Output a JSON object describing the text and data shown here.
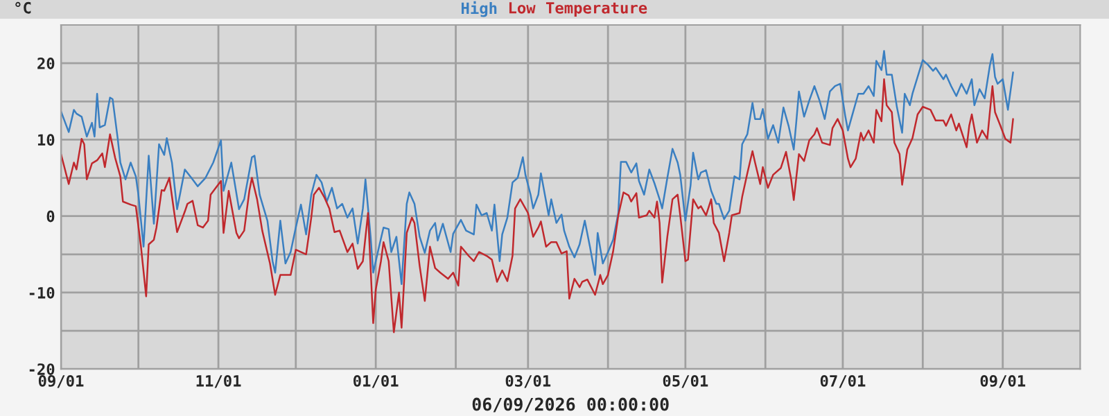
{
  "chart_data": {
    "type": "line",
    "title": "Temperature",
    "ylabel": "°C",
    "xlabel": "06/09/2026 00:00:00",
    "legend": "top",
    "grid": true,
    "marker": "none",
    "line_style": "solid",
    "xlim": [
      "2025-09-01",
      "2026-10-01"
    ],
    "xticks": [
      {
        "value": "2025-09-01",
        "label": "09/01"
      },
      {
        "value": "2025-10-01",
        "label": null
      },
      {
        "value": "2025-11-01",
        "label": "11/01"
      },
      {
        "value": "2025-12-01",
        "label": null
      },
      {
        "value": "2026-01-01",
        "label": "01/01"
      },
      {
        "value": "2026-02-01",
        "label": null
      },
      {
        "value": "2026-03-01",
        "label": "03/01"
      },
      {
        "value": "2026-04-01",
        "label": null
      },
      {
        "value": "2026-05-01",
        "label": "05/01"
      },
      {
        "value": "2026-06-01",
        "label": null
      },
      {
        "value": "2026-07-01",
        "label": "07/01"
      },
      {
        "value": "2026-08-01",
        "label": null
      },
      {
        "value": "2026-09-01",
        "label": "09/01"
      }
    ],
    "ylim": [
      -20,
      25
    ],
    "yticks": [
      -20,
      {
        "value": -15,
        "label": null
      },
      -10,
      {
        "value": -5,
        "label": null
      },
      0,
      {
        "value": 5,
        "label": null
      },
      10,
      {
        "value": 15,
        "label": null
      },
      20
    ],
    "series": [
      {
        "name": "High",
        "color": "#3a7fc1",
        "x": [
          "2025-09-01",
          "2025-09-04",
          "2025-09-06",
          "2025-09-07",
          "2025-09-09",
          "2025-09-11",
          "2025-09-13",
          "2025-09-14",
          "2025-09-15",
          "2025-09-16",
          "2025-09-18",
          "2025-09-20",
          "2025-09-21",
          "2025-09-23",
          "2025-09-24",
          "2025-09-26",
          "2025-09-28",
          "2025-09-30",
          "2025-10-01",
          "2025-10-03",
          "2025-10-05",
          "2025-10-07",
          "2025-10-09",
          "2025-10-11",
          "2025-10-12",
          "2025-10-14",
          "2025-10-16",
          "2025-10-19",
          "2025-10-22",
          "2025-10-24",
          "2025-10-27",
          "2025-10-30",
          "2025-11-02",
          "2025-11-03",
          "2025-11-06",
          "2025-11-09",
          "2025-11-11",
          "2025-11-14",
          "2025-11-15",
          "2025-11-17",
          "2025-11-20",
          "2025-11-22",
          "2025-11-23",
          "2025-11-25",
          "2025-11-27",
          "2025-11-29",
          "2025-12-01",
          "2025-12-03",
          "2025-12-05",
          "2025-12-07",
          "2025-12-09",
          "2025-12-11",
          "2025-12-13",
          "2025-12-15",
          "2025-12-17",
          "2025-12-19",
          "2025-12-21",
          "2025-12-23",
          "2025-12-25",
          "2025-12-27",
          "2025-12-28",
          "2025-12-30",
          "2025-12-31",
          "2026-01-02",
          "2026-01-04",
          "2026-01-06",
          "2026-01-07",
          "2026-01-09",
          "2026-01-11",
          "2026-01-13",
          "2026-01-14",
          "2026-01-16",
          "2026-01-18",
          "2026-01-20",
          "2026-01-22",
          "2026-01-24",
          "2026-01-25",
          "2026-01-27",
          "2026-01-30",
          "2026-01-31",
          "2026-02-03",
          "2026-02-05",
          "2026-02-08",
          "2026-02-09",
          "2026-02-11",
          "2026-02-13",
          "2026-02-15",
          "2026-02-16",
          "2026-02-18",
          "2026-02-19",
          "2026-02-21",
          "2026-02-23",
          "2026-02-25",
          "2026-02-27",
          "2026-02-28",
          "2026-03-02",
          "2026-03-03",
          "2026-03-05",
          "2026-03-06",
          "2026-03-09",
          "2026-03-10",
          "2026-03-12",
          "2026-03-14",
          "2026-03-15",
          "2026-03-17",
          "2026-03-19",
          "2026-03-21",
          "2026-03-23",
          "2026-03-25",
          "2026-03-27",
          "2026-03-28",
          "2026-03-30",
          "2026-04-01",
          "2026-04-03",
          "2026-04-05",
          "2026-04-06",
          "2026-04-08",
          "2026-04-10",
          "2026-04-12",
          "2026-04-13",
          "2026-04-15",
          "2026-04-17",
          "2026-04-19",
          "2026-04-21",
          "2026-04-22",
          "2026-04-24",
          "2026-04-26",
          "2026-04-28",
          "2026-04-29",
          "2026-05-01",
          "2026-05-03",
          "2026-05-04",
          "2026-05-06",
          "2026-05-07",
          "2026-05-09",
          "2026-05-11",
          "2026-05-13",
          "2026-05-14",
          "2026-05-16",
          "2026-05-18",
          "2026-05-20",
          "2026-05-22",
          "2026-05-23",
          "2026-05-25",
          "2026-05-27",
          "2026-05-28",
          "2026-05-30",
          "2026-05-31",
          "2026-06-02",
          "2026-06-04",
          "2026-06-06",
          "2026-06-08",
          "2026-06-10",
          "2026-06-12",
          "2026-06-13",
          "2026-06-14",
          "2026-06-16",
          "2026-06-18",
          "2026-06-20",
          "2026-06-22",
          "2026-06-24",
          "2026-06-26",
          "2026-06-28",
          "2026-06-30",
          "2026-07-02",
          "2026-07-03",
          "2026-07-05",
          "2026-07-07",
          "2026-07-09",
          "2026-07-11",
          "2026-07-13",
          "2026-07-14",
          "2026-07-16",
          "2026-07-17",
          "2026-07-18",
          "2026-07-20",
          "2026-07-22",
          "2026-07-24",
          "2026-07-25",
          "2026-07-27",
          "2026-07-28",
          "2026-07-30",
          "2026-08-01",
          "2026-08-03",
          "2026-08-05",
          "2026-08-06",
          "2026-08-09",
          "2026-08-10",
          "2026-08-12",
          "2026-08-14",
          "2026-08-16",
          "2026-08-18",
          "2026-08-20",
          "2026-08-21",
          "2026-08-23",
          "2026-08-25",
          "2026-08-27",
          "2026-08-28",
          "2026-08-29",
          "2026-08-30",
          "2026-09-01",
          "2026-09-03",
          "2026-09-05"
        ],
        "values": [
          13.7,
          11,
          13.9,
          13.4,
          13,
          10.4,
          12.2,
          10.4,
          16,
          11.6,
          11.9,
          15.5,
          15.3,
          10.1,
          7,
          4.8,
          7,
          5.2,
          2.8,
          -4,
          7.9,
          -1,
          9.4,
          8,
          10.2,
          7,
          0.9,
          6.1,
          4.8,
          3.9,
          5,
          7,
          9.9,
          3.3,
          7,
          0.9,
          2.2,
          7.7,
          7.9,
          2.8,
          -0.6,
          -5.9,
          -7.4,
          -0.6,
          -6.2,
          -4.7,
          -1.5,
          1.5,
          -2.4,
          2.8,
          5.4,
          4.4,
          1.9,
          3.7,
          1,
          1.6,
          -0.2,
          1,
          -3.6,
          1,
          4.8,
          -2.7,
          -7.4,
          -4.4,
          -1.5,
          -1.7,
          -4.7,
          -2.7,
          -8.9,
          1.6,
          3.1,
          1.6,
          -2.7,
          -4.8,
          -1.9,
          -0.9,
          -3.2,
          -1,
          -4.7,
          -2.3,
          -0.5,
          -1.9,
          -2.4,
          1.5,
          0.1,
          0.4,
          -1.9,
          1.5,
          -5.9,
          -2.4,
          -0.2,
          4.4,
          5,
          7.7,
          5.4,
          2.8,
          1,
          2.8,
          5.6,
          0.1,
          2.2,
          -0.9,
          0.2,
          -1.9,
          -4,
          -5.4,
          -3.7,
          -0.6,
          -4,
          -7.7,
          -2.2,
          -6.2,
          -4.7,
          -3.1,
          0.4,
          7.1,
          7.1,
          5.7,
          6.9,
          4.6,
          2.8,
          6.1,
          4.3,
          2.2,
          1,
          5,
          8.8,
          7,
          5.4,
          -0.6,
          4,
          8.3,
          4.8,
          5.7,
          6,
          3.3,
          1.6,
          1.6,
          -0.4,
          0.7,
          5.2,
          4.8,
          9.4,
          10.7,
          14.8,
          12.7,
          12.7,
          14,
          10.1,
          11.9,
          9.6,
          14.2,
          11.8,
          8.7,
          12.4,
          16.3,
          13,
          15.1,
          17,
          15.1,
          12.7,
          16.3,
          17,
          17.3,
          13,
          11.2,
          13.6,
          16,
          16,
          17,
          15.7,
          20.3,
          19.1,
          21.6,
          18.5,
          18.5,
          14.2,
          10.9,
          16,
          14.5,
          16,
          18.2,
          20.4,
          19.8,
          19,
          19.4,
          17.9,
          18.5,
          17,
          15.7,
          17.3,
          16,
          17.9,
          14.5,
          16.6,
          15.4,
          19.7,
          21.2,
          18.2,
          17.3,
          17.9,
          13.9,
          18.8
        ]
      },
      {
        "name": "Low",
        "color": "#c0282d",
        "x": [
          "2025-09-01",
          "2025-09-04",
          "2025-09-06",
          "2025-09-07",
          "2025-09-09",
          "2025-09-10",
          "2025-09-11",
          "2025-09-13",
          "2025-09-15",
          "2025-09-17",
          "2025-09-18",
          "2025-09-20",
          "2025-09-22",
          "2025-09-24",
          "2025-09-25",
          "2025-09-28",
          "2025-09-30",
          "2025-10-02",
          "2025-10-04",
          "2025-10-05",
          "2025-10-07",
          "2025-10-08",
          "2025-10-10",
          "2025-10-11",
          "2025-10-13",
          "2025-10-15",
          "2025-10-16",
          "2025-10-19",
          "2025-10-20",
          "2025-10-22",
          "2025-10-24",
          "2025-10-26",
          "2025-10-28",
          "2025-10-29",
          "2025-11-02",
          "2025-11-03",
          "2025-11-05",
          "2025-11-08",
          "2025-11-09",
          "2025-11-11",
          "2025-11-13",
          "2025-11-14",
          "2025-11-16",
          "2025-11-18",
          "2025-11-21",
          "2025-11-23",
          "2025-11-25",
          "2025-11-29",
          "2025-12-01",
          "2025-12-05",
          "2025-12-07",
          "2025-12-08",
          "2025-12-10",
          "2025-12-12",
          "2025-12-14",
          "2025-12-16",
          "2025-12-18",
          "2025-12-21",
          "2025-12-23",
          "2025-12-25",
          "2025-12-27",
          "2025-12-29",
          "2025-12-31",
          "2026-01-01",
          "2026-01-03",
          "2026-01-04",
          "2026-01-06",
          "2026-01-08",
          "2026-01-10",
          "2026-01-11",
          "2026-01-13",
          "2026-01-15",
          "2026-01-16",
          "2026-01-18",
          "2026-01-20",
          "2026-01-22",
          "2026-01-24",
          "2026-01-26",
          "2026-01-29",
          "2026-01-31",
          "2026-02-02",
          "2026-02-03",
          "2026-02-06",
          "2026-02-08",
          "2026-02-10",
          "2026-02-13",
          "2026-02-15",
          "2026-02-17",
          "2026-02-19",
          "2026-02-21",
          "2026-02-23",
          "2026-02-24",
          "2026-02-26",
          "2026-02-28",
          "2026-03-01",
          "2026-03-03",
          "2026-03-05",
          "2026-03-06",
          "2026-03-08",
          "2026-03-10",
          "2026-03-12",
          "2026-03-14",
          "2026-03-16",
          "2026-03-17",
          "2026-03-19",
          "2026-03-21",
          "2026-03-22",
          "2026-03-24",
          "2026-03-27",
          "2026-03-29",
          "2026-03-30",
          "2026-04-01",
          "2026-04-03",
          "2026-04-05",
          "2026-04-07",
          "2026-04-09",
          "2026-04-10",
          "2026-04-12",
          "2026-04-13",
          "2026-04-16",
          "2026-04-17",
          "2026-04-19",
          "2026-04-20",
          "2026-04-21",
          "2026-04-22",
          "2026-04-24",
          "2026-04-26",
          "2026-04-28",
          "2026-04-29",
          "2026-05-01",
          "2026-05-02",
          "2026-05-04",
          "2026-05-06",
          "2026-05-07",
          "2026-05-09",
          "2026-05-11",
          "2026-05-12",
          "2026-05-14",
          "2026-05-16",
          "2026-05-18",
          "2026-05-19",
          "2026-05-22",
          "2026-05-23",
          "2026-05-25",
          "2026-05-27",
          "2026-05-28",
          "2026-05-30",
          "2026-05-31",
          "2026-06-02",
          "2026-06-04",
          "2026-06-07",
          "2026-06-09",
          "2026-06-11",
          "2026-06-12",
          "2026-06-14",
          "2026-06-16",
          "2026-06-18",
          "2026-06-20",
          "2026-06-21",
          "2026-06-23",
          "2026-06-26",
          "2026-06-27",
          "2026-06-29",
          "2026-07-01",
          "2026-07-03",
          "2026-07-04",
          "2026-07-06",
          "2026-07-08",
          "2026-07-09",
          "2026-07-11",
          "2026-07-13",
          "2026-07-14",
          "2026-07-16",
          "2026-07-17",
          "2026-07-18",
          "2026-07-20",
          "2026-07-21",
          "2026-07-23",
          "2026-07-24",
          "2026-07-26",
          "2026-07-28",
          "2026-07-30",
          "2026-08-01",
          "2026-08-04",
          "2026-08-06",
          "2026-08-09",
          "2026-08-10",
          "2026-08-12",
          "2026-08-14",
          "2026-08-15",
          "2026-08-18",
          "2026-08-19",
          "2026-08-20",
          "2026-08-22",
          "2026-08-24",
          "2026-08-26",
          "2026-08-27",
          "2026-08-28",
          "2026-08-29",
          "2026-08-31",
          "2026-09-02",
          "2026-09-04",
          "2026-09-05"
        ],
        "values": [
          8.1,
          4.2,
          7,
          6.1,
          10.1,
          9.4,
          4.8,
          6.9,
          7.3,
          8.2,
          6.4,
          10.7,
          7.6,
          5.2,
          1.9,
          1.5,
          1.3,
          -4,
          -10.5,
          -3.7,
          -3.1,
          -1.5,
          3.4,
          3.3,
          5,
          0.2,
          -2.1,
          0.6,
          1.6,
          2,
          -1.2,
          -1.5,
          -0.6,
          2.8,
          4.6,
          -2.2,
          3.3,
          -2.2,
          -2.9,
          -1.9,
          3.3,
          5,
          2.2,
          -1.9,
          -6.2,
          -10.3,
          -7.7,
          -7.7,
          -4.4,
          -5,
          -0.2,
          2.8,
          3.7,
          2.5,
          1,
          -2.1,
          -1.9,
          -4.7,
          -3.6,
          -6.9,
          -5.9,
          0.4,
          -14,
          -9.6,
          -5.9,
          -3.4,
          -5.9,
          -15.2,
          -10,
          -14.6,
          -2.2,
          -0.2,
          -0.9,
          -6.5,
          -11.1,
          -4,
          -6.8,
          -7.4,
          -8.2,
          -7.4,
          -9.1,
          -4,
          -5.2,
          -5.9,
          -4.7,
          -5.2,
          -5.7,
          -8.6,
          -7.1,
          -8.5,
          -5.2,
          1,
          2.2,
          1,
          0.4,
          -2.7,
          -1.5,
          -0.7,
          -4,
          -3.4,
          -3.4,
          -4.9,
          -4.6,
          -10.8,
          -8.2,
          -9.3,
          -8.6,
          -8.3,
          -10.3,
          -7.7,
          -8.9,
          -7.7,
          -4.6,
          0.1,
          3.1,
          2.7,
          1.9,
          3,
          -0.2,
          0.1,
          0.7,
          -0.2,
          1.9,
          -0.9,
          -8.7,
          -2.7,
          2.2,
          2.8,
          0.1,
          -5.9,
          -5.7,
          2.2,
          1,
          1.3,
          0.1,
          2.2,
          -0.9,
          -2.2,
          -5.9,
          -2.2,
          0.1,
          0.4,
          2.5,
          5.6,
          8.5,
          7,
          4.2,
          6.4,
          3.7,
          5.4,
          6.3,
          8.4,
          4.8,
          2.1,
          8.1,
          7.2,
          9.9,
          10.7,
          11.5,
          9.6,
          9.3,
          11.5,
          12.7,
          11.2,
          7.5,
          6.4,
          7.5,
          10.9,
          9.9,
          11.2,
          9.6,
          13.9,
          12.4,
          17.9,
          14.5,
          13.6,
          9.6,
          8.1,
          4.1,
          8.7,
          10.2,
          13.3,
          14.3,
          13.9,
          12.5,
          12.5,
          11.8,
          13.3,
          11.2,
          12.1,
          9,
          11.8,
          13.3,
          9.6,
          11.2,
          10.1,
          13.6,
          17,
          13.6,
          11.9,
          10.1,
          9.6,
          12.7
        ]
      }
    ]
  }
}
